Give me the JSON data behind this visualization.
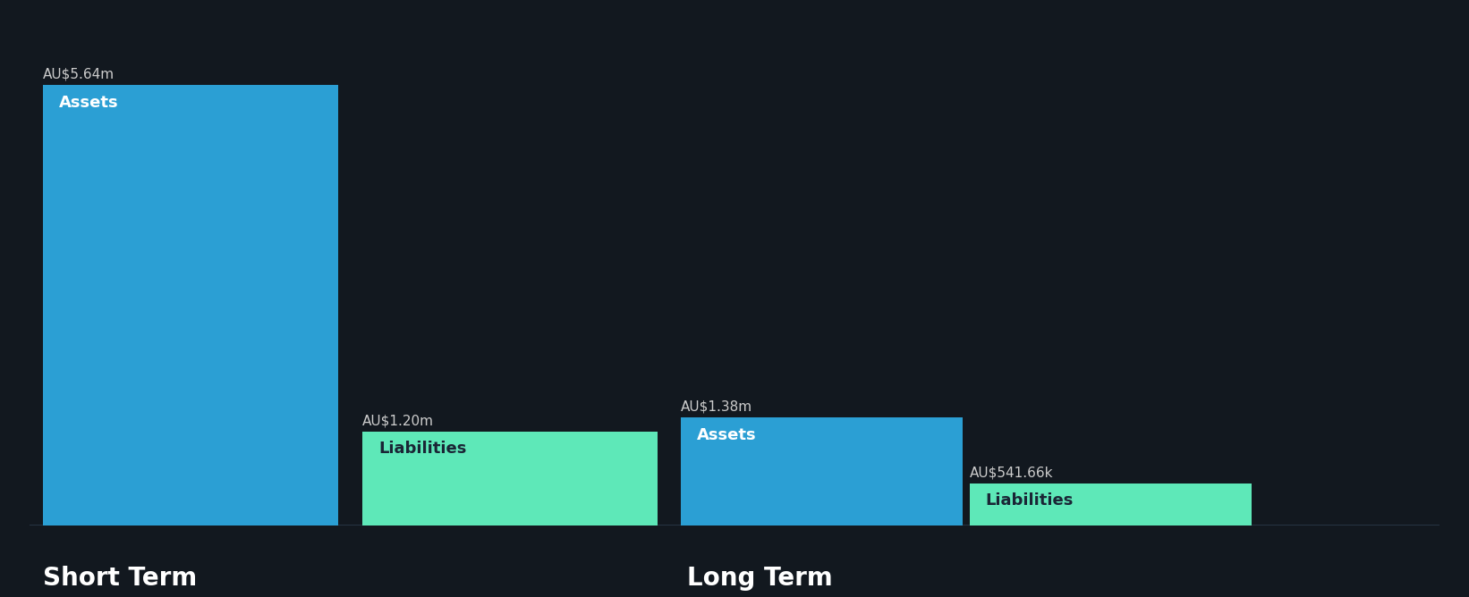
{
  "background_color": "#12181f",
  "groups": [
    {
      "label": "Short Term",
      "label_align": "left",
      "bars": [
        {
          "name": "Assets",
          "value": 5.64,
          "value_label": "AU$5.64m",
          "color": "#2b9fd4",
          "text_color": "#ffffff"
        },
        {
          "name": "Liabilities",
          "value": 1.2,
          "value_label": "AU$1.20m",
          "color": "#5ee8b8",
          "text_color": "#1a2535"
        }
      ]
    },
    {
      "label": "Long Term",
      "label_align": "center",
      "bars": [
        {
          "name": "Assets",
          "value": 1.38,
          "value_label": "AU$1.38m",
          "color": "#2b9fd4",
          "text_color": "#ffffff"
        },
        {
          "name": "Liabilities",
          "value": 0.54166,
          "value_label": "AU$541.66k",
          "color": "#5ee8b8",
          "text_color": "#1a2535"
        }
      ]
    }
  ],
  "group_label_fontsize": 20,
  "bar_label_fontsize": 13,
  "value_label_fontsize": 11,
  "group_label_color": "#ffffff",
  "value_label_color": "#cccccc",
  "ylim_max": 6.5,
  "bottom_line_color": "#2a3a4a"
}
